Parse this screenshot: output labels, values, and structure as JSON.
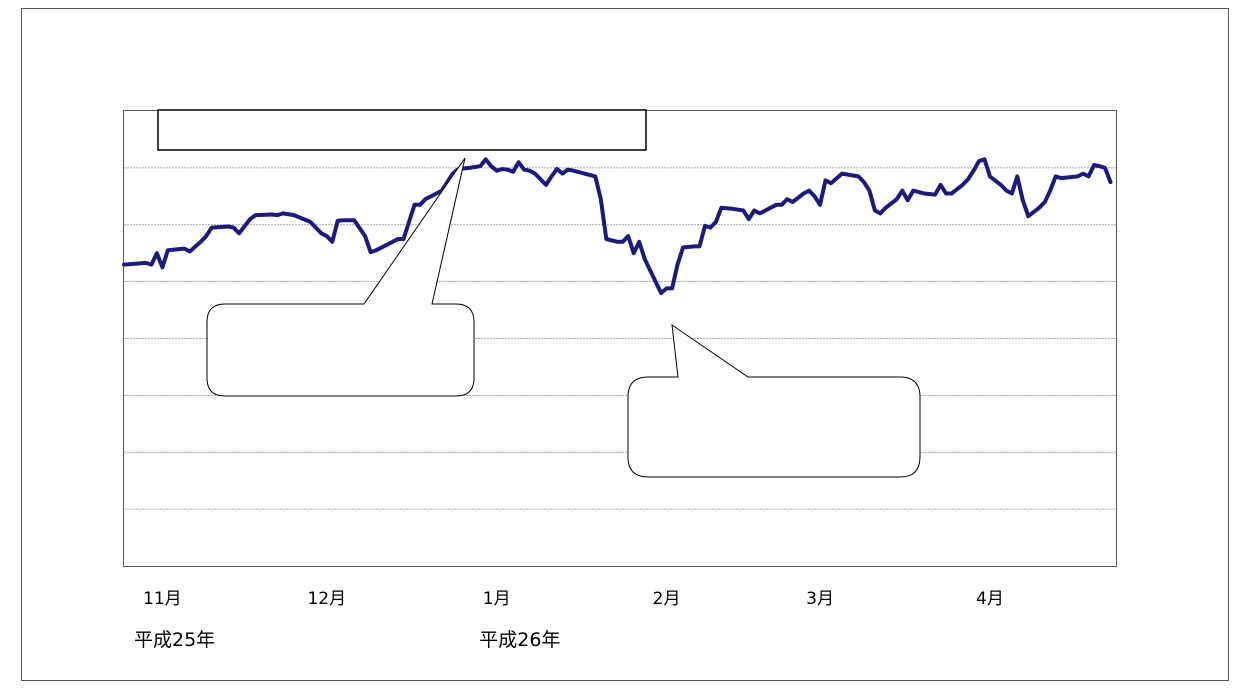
{
  "chart_data": {
    "type": "line",
    "title": "",
    "xlabel": "",
    "ylabel": "",
    "month_ticks": [
      {
        "label": "11月",
        "day": 7
      },
      {
        "label": "12月",
        "day": 37
      },
      {
        "label": "1月",
        "day": 68
      },
      {
        "label": "2月",
        "day": 99
      },
      {
        "label": "3月",
        "day": 127
      },
      {
        "label": "4月",
        "day": 158
      }
    ],
    "era_labels": [
      {
        "label": "平成25年",
        "day": 0
      },
      {
        "label": "平成26年",
        "day": 63
      }
    ],
    "xlim": [
      0,
      181
    ],
    "ylim": [
      0,
      8
    ],
    "grid": true,
    "line_color": "#1b1b7e",
    "series": [
      {
        "name": "",
        "points": [
          [
            0,
            5.3
          ],
          [
            4,
            5.33
          ],
          [
            5,
            5.3
          ],
          [
            6,
            5.5
          ],
          [
            7,
            5.25
          ],
          [
            8,
            5.55
          ],
          [
            11,
            5.58
          ],
          [
            12,
            5.53
          ],
          [
            14,
            5.7
          ],
          [
            15,
            5.8
          ],
          [
            16,
            5.95
          ],
          [
            19,
            5.97
          ],
          [
            20,
            5.95
          ],
          [
            21,
            5.85
          ],
          [
            23,
            6.1
          ],
          [
            24,
            6.17
          ],
          [
            27,
            6.18
          ],
          [
            28,
            6.17
          ],
          [
            29,
            6.2
          ],
          [
            31,
            6.17
          ],
          [
            34,
            6.05
          ],
          [
            36,
            5.85
          ],
          [
            37,
            5.8
          ],
          [
            38,
            5.7
          ],
          [
            39,
            6.07
          ],
          [
            40,
            6.08
          ],
          [
            42,
            6.08
          ],
          [
            44,
            5.8
          ],
          [
            45,
            5.52
          ],
          [
            46,
            5.55
          ],
          [
            48,
            5.65
          ],
          [
            50,
            5.75
          ],
          [
            51,
            5.75
          ],
          [
            53,
            6.35
          ],
          [
            54,
            6.35
          ],
          [
            55,
            6.45
          ],
          [
            57,
            6.55
          ],
          [
            58,
            6.6
          ],
          [
            60,
            6.9
          ],
          [
            61,
            6.98
          ],
          [
            63,
            7.0
          ],
          [
            65,
            7.03
          ],
          [
            66,
            7.15
          ],
          [
            67,
            7.03
          ],
          [
            68,
            6.95
          ],
          [
            69,
            6.98
          ],
          [
            70,
            6.97
          ],
          [
            71,
            6.93
          ],
          [
            72,
            7.1
          ],
          [
            73,
            6.97
          ],
          [
            74,
            6.95
          ],
          [
            75,
            6.9
          ],
          [
            77,
            6.7
          ],
          [
            78,
            6.85
          ],
          [
            79,
            6.98
          ],
          [
            80,
            6.9
          ],
          [
            81,
            6.97
          ],
          [
            82,
            6.95
          ],
          [
            84,
            6.9
          ],
          [
            86,
            6.85
          ],
          [
            87,
            6.45
          ],
          [
            88,
            5.75
          ],
          [
            90,
            5.7
          ],
          [
            91,
            5.7
          ],
          [
            92,
            5.8
          ],
          [
            93,
            5.5
          ],
          [
            94,
            5.7
          ],
          [
            95,
            5.4
          ],
          [
            96,
            5.2
          ],
          [
            97,
            5.0
          ],
          [
            98,
            4.8
          ],
          [
            99,
            4.88
          ],
          [
            100,
            4.88
          ],
          [
            101,
            5.3
          ],
          [
            102,
            5.6
          ],
          [
            104,
            5.62
          ],
          [
            105,
            5.62
          ],
          [
            106,
            5.98
          ],
          [
            107,
            5.95
          ],
          [
            108,
            6.05
          ],
          [
            109,
            6.3
          ],
          [
            111,
            6.28
          ],
          [
            113,
            6.25
          ],
          [
            114,
            6.1
          ],
          [
            115,
            6.25
          ],
          [
            116,
            6.2
          ],
          [
            118,
            6.3
          ],
          [
            119,
            6.35
          ],
          [
            120,
            6.35
          ],
          [
            121,
            6.45
          ],
          [
            122,
            6.4
          ],
          [
            124,
            6.55
          ],
          [
            125,
            6.6
          ],
          [
            126,
            6.5
          ],
          [
            127,
            6.35
          ],
          [
            128,
            6.78
          ],
          [
            129,
            6.73
          ],
          [
            131,
            6.9
          ],
          [
            134,
            6.85
          ],
          [
            135,
            6.75
          ],
          [
            136,
            6.6
          ],
          [
            137,
            6.25
          ],
          [
            138,
            6.2
          ],
          [
            139,
            6.3
          ],
          [
            141,
            6.45
          ],
          [
            142,
            6.6
          ],
          [
            143,
            6.43
          ],
          [
            144,
            6.6
          ],
          [
            146,
            6.55
          ],
          [
            148,
            6.53
          ],
          [
            149,
            6.7
          ],
          [
            150,
            6.55
          ],
          [
            151,
            6.55
          ],
          [
            153,
            6.7
          ],
          [
            154,
            6.8
          ],
          [
            155,
            6.95
          ],
          [
            156,
            7.12
          ],
          [
            157,
            7.15
          ],
          [
            158,
            6.85
          ],
          [
            160,
            6.7
          ],
          [
            161,
            6.6
          ],
          [
            162,
            6.55
          ],
          [
            163,
            6.85
          ],
          [
            164,
            6.43
          ],
          [
            165,
            6.15
          ],
          [
            167,
            6.3
          ],
          [
            168,
            6.4
          ],
          [
            169,
            6.6
          ],
          [
            170,
            6.85
          ],
          [
            171,
            6.82
          ],
          [
            174,
            6.85
          ],
          [
            175,
            6.9
          ],
          [
            176,
            6.85
          ],
          [
            177,
            7.05
          ],
          [
            178,
            7.03
          ],
          [
            179,
            7.0
          ],
          [
            180,
            6.75
          ]
        ]
      }
    ]
  }
}
